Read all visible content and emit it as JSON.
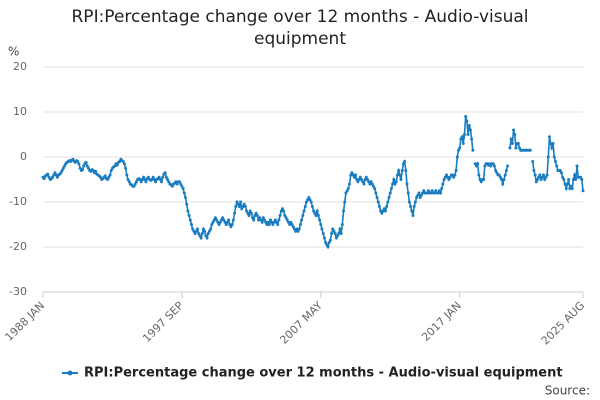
{
  "chart_data": {
    "type": "line",
    "title": "RPI:Percentage change over 12 months - Audio-visual equipment",
    "y_label": "%",
    "source": "Source:",
    "categories": [
      "1988 JAN",
      null,
      null,
      null,
      null,
      null,
      null,
      null,
      null,
      null,
      null,
      null,
      null,
      null,
      null,
      null,
      null,
      null,
      null,
      null,
      null,
      null,
      null,
      null,
      null,
      null,
      null,
      null,
      null,
      null,
      null,
      null,
      null,
      null,
      null,
      null,
      null,
      null,
      null,
      null,
      null,
      null,
      null,
      null,
      null,
      null,
      null,
      null,
      null,
      null,
      null,
      null,
      null,
      null,
      null,
      null,
      null,
      null,
      null,
      null,
      null,
      null,
      null,
      null,
      null,
      null,
      null,
      null,
      null,
      null,
      null,
      null,
      null,
      null,
      null,
      null,
      null,
      null,
      null,
      null,
      null,
      null,
      null,
      null,
      null,
      null,
      null,
      null,
      null,
      null,
      null,
      null,
      null,
      null,
      null,
      null,
      null,
      null,
      null,
      null,
      null,
      null,
      null,
      null,
      null,
      null,
      null,
      null,
      null,
      null,
      null,
      null,
      null,
      null,
      null,
      null,
      "1997 SEP",
      null,
      null,
      null,
      null,
      null,
      null,
      null,
      null,
      null,
      null,
      null,
      null,
      null,
      null,
      null,
      null,
      null,
      null,
      null,
      null,
      null,
      null,
      null,
      null,
      null,
      null,
      null,
      null,
      null,
      null,
      null,
      null,
      null,
      null,
      null,
      null,
      null,
      null,
      null,
      null,
      null,
      null,
      null,
      null,
      null,
      null,
      null,
      null,
      null,
      null,
      null,
      null,
      null,
      null,
      null,
      null,
      null,
      null,
      null,
      null,
      null,
      null,
      null,
      null,
      null,
      null,
      null,
      null,
      null,
      null,
      null,
      null,
      null,
      null,
      null,
      null,
      null,
      null,
      null,
      null,
      null,
      null,
      null,
      null,
      null,
      null,
      null,
      null,
      null,
      null,
      null,
      null,
      null,
      null,
      null,
      null,
      null,
      null,
      null,
      null,
      null,
      null,
      null,
      null,
      null,
      null,
      null,
      null,
      null,
      null,
      null,
      null,
      null,
      null,
      null,
      "2007 MAY",
      null,
      null,
      null,
      null,
      null,
      null,
      null,
      null,
      null,
      null,
      null,
      null,
      null,
      null,
      null,
      null,
      null,
      null,
      null,
      null,
      null,
      null,
      null,
      null,
      null,
      null,
      null,
      null,
      null,
      null,
      null,
      null,
      null,
      null,
      null,
      null,
      null,
      null,
      null,
      null,
      null,
      null,
      null,
      null,
      null,
      null,
      null,
      null,
      null,
      null,
      null,
      null,
      null,
      null,
      null,
      null,
      null,
      null,
      null,
      null,
      null,
      null,
      null,
      null,
      null,
      null,
      null,
      null,
      null,
      null,
      null,
      null,
      null,
      null,
      null,
      null,
      null,
      null,
      null,
      null,
      null,
      null,
      null,
      null,
      null,
      null,
      null,
      null,
      null,
      null,
      null,
      null,
      null,
      null,
      null,
      null,
      null,
      null,
      null,
      null,
      null,
      null,
      null,
      null,
      null,
      null,
      null,
      null,
      null,
      null,
      null,
      null,
      null,
      null,
      null,
      "2017 JAN",
      null,
      null,
      null,
      null,
      null,
      null,
      null,
      null,
      null,
      null,
      null,
      null,
      null,
      null,
      null,
      null,
      null,
      null,
      null,
      null,
      null,
      null,
      null,
      null,
      null,
      null,
      null,
      null,
      null,
      null,
      null,
      null,
      null,
      null,
      null,
      null,
      null,
      null,
      null,
      null,
      null,
      null,
      null,
      null,
      null,
      null,
      null,
      null,
      null,
      null,
      null,
      null,
      null,
      null,
      null,
      null,
      null,
      null,
      null,
      null,
      null,
      null,
      null,
      null,
      null,
      null,
      null,
      null,
      null,
      null,
      null,
      null,
      null,
      null,
      null,
      null,
      null,
      null,
      null,
      null,
      null,
      null,
      null,
      null,
      null,
      null,
      null,
      null,
      null,
      null,
      null,
      null,
      null,
      null,
      null,
      null,
      null,
      null,
      null,
      null,
      null,
      null,
      "2025 AUG"
    ],
    "series": [
      {
        "name": "RPI:Percentage change over 12 months - Audio-visual equipment",
        "color": "#1a7dc0",
        "values": [
          -4.5,
          -4.8,
          -4.2,
          -4,
          -3.8,
          -4.5,
          -5,
          -4.8,
          -4.5,
          -4,
          -3.5,
          -4,
          -4.5,
          -4,
          -3.8,
          -3.5,
          -3,
          -2.5,
          -2,
          -1.5,
          -1.2,
          -1,
          -0.8,
          -1,
          -0.7,
          -0.5,
          -1,
          -1.2,
          -0.8,
          -1,
          -1.5,
          -2.5,
          -3,
          -2.8,
          -2,
          -1.5,
          -1.2,
          -2,
          -2.5,
          -3,
          -3.2,
          -2.8,
          -3,
          -3.5,
          -3.2,
          -3.8,
          -4,
          -4.2,
          -4.5,
          -5,
          -4.8,
          -4.5,
          -4.2,
          -4.8,
          -5,
          -4.5,
          -4,
          -3,
          -2.5,
          -2.2,
          -2,
          -1.5,
          -1.8,
          -1.2,
          -1,
          -0.5,
          -0.8,
          -1,
          -1.5,
          -2.5,
          -4,
          -5,
          -5.5,
          -6,
          -6.2,
          -6.5,
          -6.5,
          -6,
          -5.5,
          -5,
          -4.8,
          -5,
          -5.5,
          -5,
          -4.5,
          -5,
          -5.5,
          -4.8,
          -4.5,
          -5,
          -5.2,
          -5,
          -4.5,
          -5,
          -5.5,
          -5,
          -4.8,
          -4.5,
          -5,
          -5.5,
          -4.5,
          -3.8,
          -3.5,
          -4.5,
          -5,
          -5.5,
          -6,
          -6.2,
          -6.5,
          -6,
          -5.8,
          -5.5,
          -6,
          -5.5,
          -5.5,
          -6,
          -6.5,
          -7,
          -8,
          -9,
          -10.5,
          -12,
          -13,
          -14,
          -15,
          -16,
          -16.5,
          -17,
          -16.5,
          -16,
          -17,
          -17.5,
          -18,
          -17,
          -16,
          -16.5,
          -17.5,
          -18,
          -17,
          -16.5,
          -16,
          -15,
          -14.5,
          -14,
          -13.5,
          -14,
          -14.5,
          -15,
          -14.5,
          -14,
          -13.5,
          -14,
          -14.5,
          -15,
          -14.5,
          -14,
          -15,
          -15.5,
          -15,
          -14,
          -12.5,
          -11,
          -10,
          -10.5,
          -11,
          -10,
          -11.5,
          -11,
          -10.5,
          -11,
          -12,
          -12.5,
          -13,
          -12,
          -12.5,
          -13.5,
          -14,
          -13,
          -12.5,
          -13,
          -14,
          -13.5,
          -14,
          -14.5,
          -13.5,
          -14,
          -14.5,
          -15,
          -14.5,
          -15,
          -14,
          -14.5,
          -15,
          -14.5,
          -14,
          -14.5,
          -15,
          -14,
          -13,
          -12,
          -11.5,
          -12,
          -13,
          -13.5,
          -14,
          -14.5,
          -15,
          -14.5,
          -15,
          -15.5,
          -16,
          -16.5,
          -16,
          -16.5,
          -16,
          -15,
          -14,
          -13,
          -12,
          -11,
          -10,
          -9.5,
          -9,
          -9.5,
          -10,
          -11,
          -12,
          -12.5,
          -13,
          -12,
          -13,
          -14,
          -15,
          -16,
          -17,
          -18,
          -19,
          -19.5,
          -20,
          -19,
          -18.5,
          -17,
          -16,
          -16.5,
          -17,
          -18,
          -17.5,
          -17,
          -16,
          -17,
          -15,
          -12,
          -10,
          -8,
          -7.5,
          -7,
          -6,
          -4,
          -3.5,
          -4,
          -4.5,
          -4,
          -5,
          -5.5,
          -5,
          -4.5,
          -5,
          -5.5,
          -6,
          -5,
          -4.5,
          -5,
          -5.5,
          -6,
          -5.5,
          -6,
          -6.5,
          -7,
          -8,
          -9,
          -10,
          -11,
          -12,
          -12.5,
          -12,
          -11.5,
          -12,
          -11,
          -10,
          -9,
          -8,
          -7,
          -6,
          -5,
          -6,
          -5.5,
          -4,
          -3,
          -4,
          -5,
          -3,
          -1.5,
          -1,
          -3,
          -6,
          -8,
          -10,
          -11,
          -12,
          -13,
          -11,
          -10,
          -9,
          -8.5,
          -8,
          -9,
          -8.5,
          -8,
          -7.5,
          -8,
          -8,
          -8,
          -7.5,
          -8,
          -8,
          -7.5,
          -8,
          -8,
          -7.5,
          -8,
          -8,
          -7.5,
          -8,
          -7,
          -6,
          -5,
          -4.5,
          -4,
          -4.5,
          -5,
          -4.5,
          -4,
          -4,
          -4.5,
          -4,
          -3,
          0,
          1.5,
          2,
          4,
          4.5,
          3,
          5,
          9,
          8,
          5,
          7,
          6,
          4,
          1.5,
          null,
          -1.5,
          -2,
          -1.5,
          -4,
          -5,
          -5.5,
          -5,
          -5,
          -2,
          -1.5,
          -1.5,
          -1.8,
          -1.5,
          -2,
          -1.5,
          -1.5,
          -2,
          -3,
          -3.5,
          -4,
          -4,
          -4.5,
          -5,
          -6,
          -5,
          -4,
          -3,
          -2,
          null,
          2,
          4,
          3,
          6,
          5,
          2,
          3,
          3,
          2,
          1.5,
          1.5,
          1.5,
          1.5,
          1.5,
          1.5,
          1.5,
          1.5,
          1.5,
          null,
          -1,
          -3,
          -4,
          -5.5,
          -5,
          -4.5,
          -4,
          -5,
          -4.5,
          -4,
          -5,
          -4.5,
          -4,
          0,
          4.5,
          3,
          2,
          3,
          0,
          -1,
          -2,
          -3,
          -3,
          -3,
          -3.5,
          -4.5,
          -5,
          -6,
          -7,
          -6,
          -5,
          -7,
          -6.5,
          -7,
          -5,
          -4,
          -5,
          -2,
          -4.5,
          -4.5,
          -4.5,
          -5,
          -7.5
        ]
      }
    ],
    "ylim": [
      -30,
      20
    ],
    "yticks": [
      -30,
      -20,
      -10,
      0,
      10,
      20
    ],
    "grid": true,
    "legend": "bottom"
  }
}
